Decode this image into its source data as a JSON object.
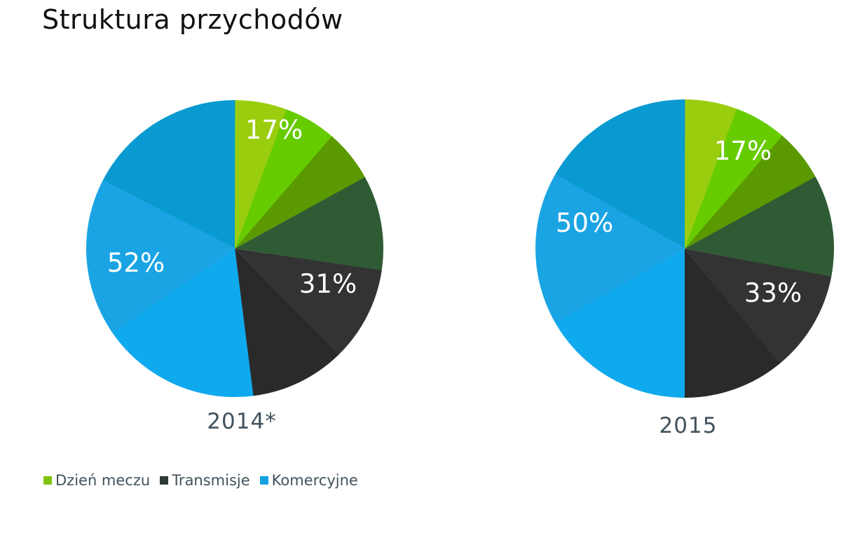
{
  "title": "Struktura przychodów",
  "legend": [
    {
      "label": "Dzień meczu",
      "color": "#7ec40f"
    },
    {
      "label": "Transmisje",
      "color": "#2d3a33"
    },
    {
      "label": "Komercyjne",
      "color": "#13a3e0"
    }
  ],
  "colors": {
    "dzien_meczu": "#7ec40f",
    "transmisje": "#2d2d2d",
    "komercyjne": "#13a3e0"
  },
  "chart_data": [
    {
      "type": "pie",
      "title": "Struktura przychodów",
      "label": "2014*",
      "categories": [
        "Dzień meczu",
        "Transmisje",
        "Komercyjne"
      ],
      "values": [
        17,
        31,
        52
      ],
      "value_labels": [
        "17%",
        "31%",
        "52%"
      ]
    },
    {
      "type": "pie",
      "title": "Struktura przychodów",
      "label": "2015",
      "categories": [
        "Dzień meczu",
        "Transmisje",
        "Komercyjne"
      ],
      "values": [
        17,
        33,
        50
      ],
      "value_labels": [
        "17%",
        "33%",
        "50%"
      ]
    }
  ]
}
